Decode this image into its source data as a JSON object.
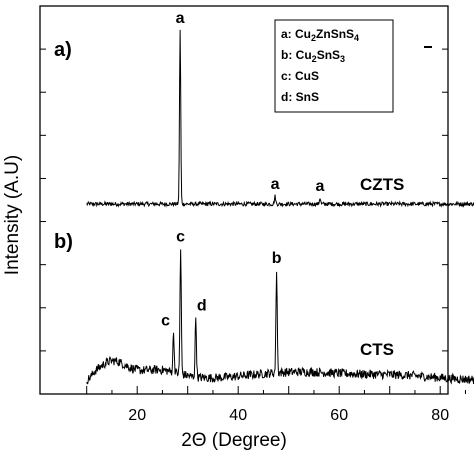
{
  "chart_data": {
    "type": "line",
    "xlabel": "2Θ (Degree)",
    "ylabel": "Intensity (A.U)",
    "xlim": [
      10,
      90
    ],
    "x_ticks": [
      20,
      40,
      60,
      80
    ],
    "grid": false,
    "panels": [
      {
        "panel_label": "a)",
        "series_name": "CZTS",
        "baseline": 0.095,
        "noise": 0.006,
        "peaks": [
          {
            "x": 28.5,
            "height": 1.0,
            "label": "a"
          },
          {
            "x": 47.3,
            "height": 0.045,
            "label": "a"
          },
          {
            "x": 56.2,
            "height": 0.035,
            "label": "a"
          }
        ]
      },
      {
        "panel_label": "b)",
        "series_name": "CTS",
        "peaks": [
          {
            "x": 27.2,
            "height": 0.3,
            "label": "c"
          },
          {
            "x": 28.6,
            "height": 0.95,
            "label": "c"
          },
          {
            "x": 31.6,
            "height": 0.45,
            "label": "d"
          },
          {
            "x": 47.6,
            "height": 0.78,
            "label": "b"
          }
        ]
      }
    ],
    "legend": {
      "position": "top-right",
      "entries": [
        {
          "key": "a:",
          "parts": [
            [
              "Cu",
              ""
            ],
            [
              "2",
              "sub"
            ],
            [
              "ZnSnS",
              ""
            ],
            [
              "4",
              "sub"
            ]
          ]
        },
        {
          "key": "b:",
          "parts": [
            [
              "Cu",
              ""
            ],
            [
              "2",
              "sub"
            ],
            [
              "SnS",
              ""
            ],
            [
              "3",
              "sub"
            ]
          ]
        },
        {
          "key": "c:",
          "parts": [
            [
              "CuS",
              ""
            ]
          ]
        },
        {
          "key": "d:",
          "parts": [
            [
              "SnS",
              ""
            ]
          ]
        }
      ]
    }
  }
}
